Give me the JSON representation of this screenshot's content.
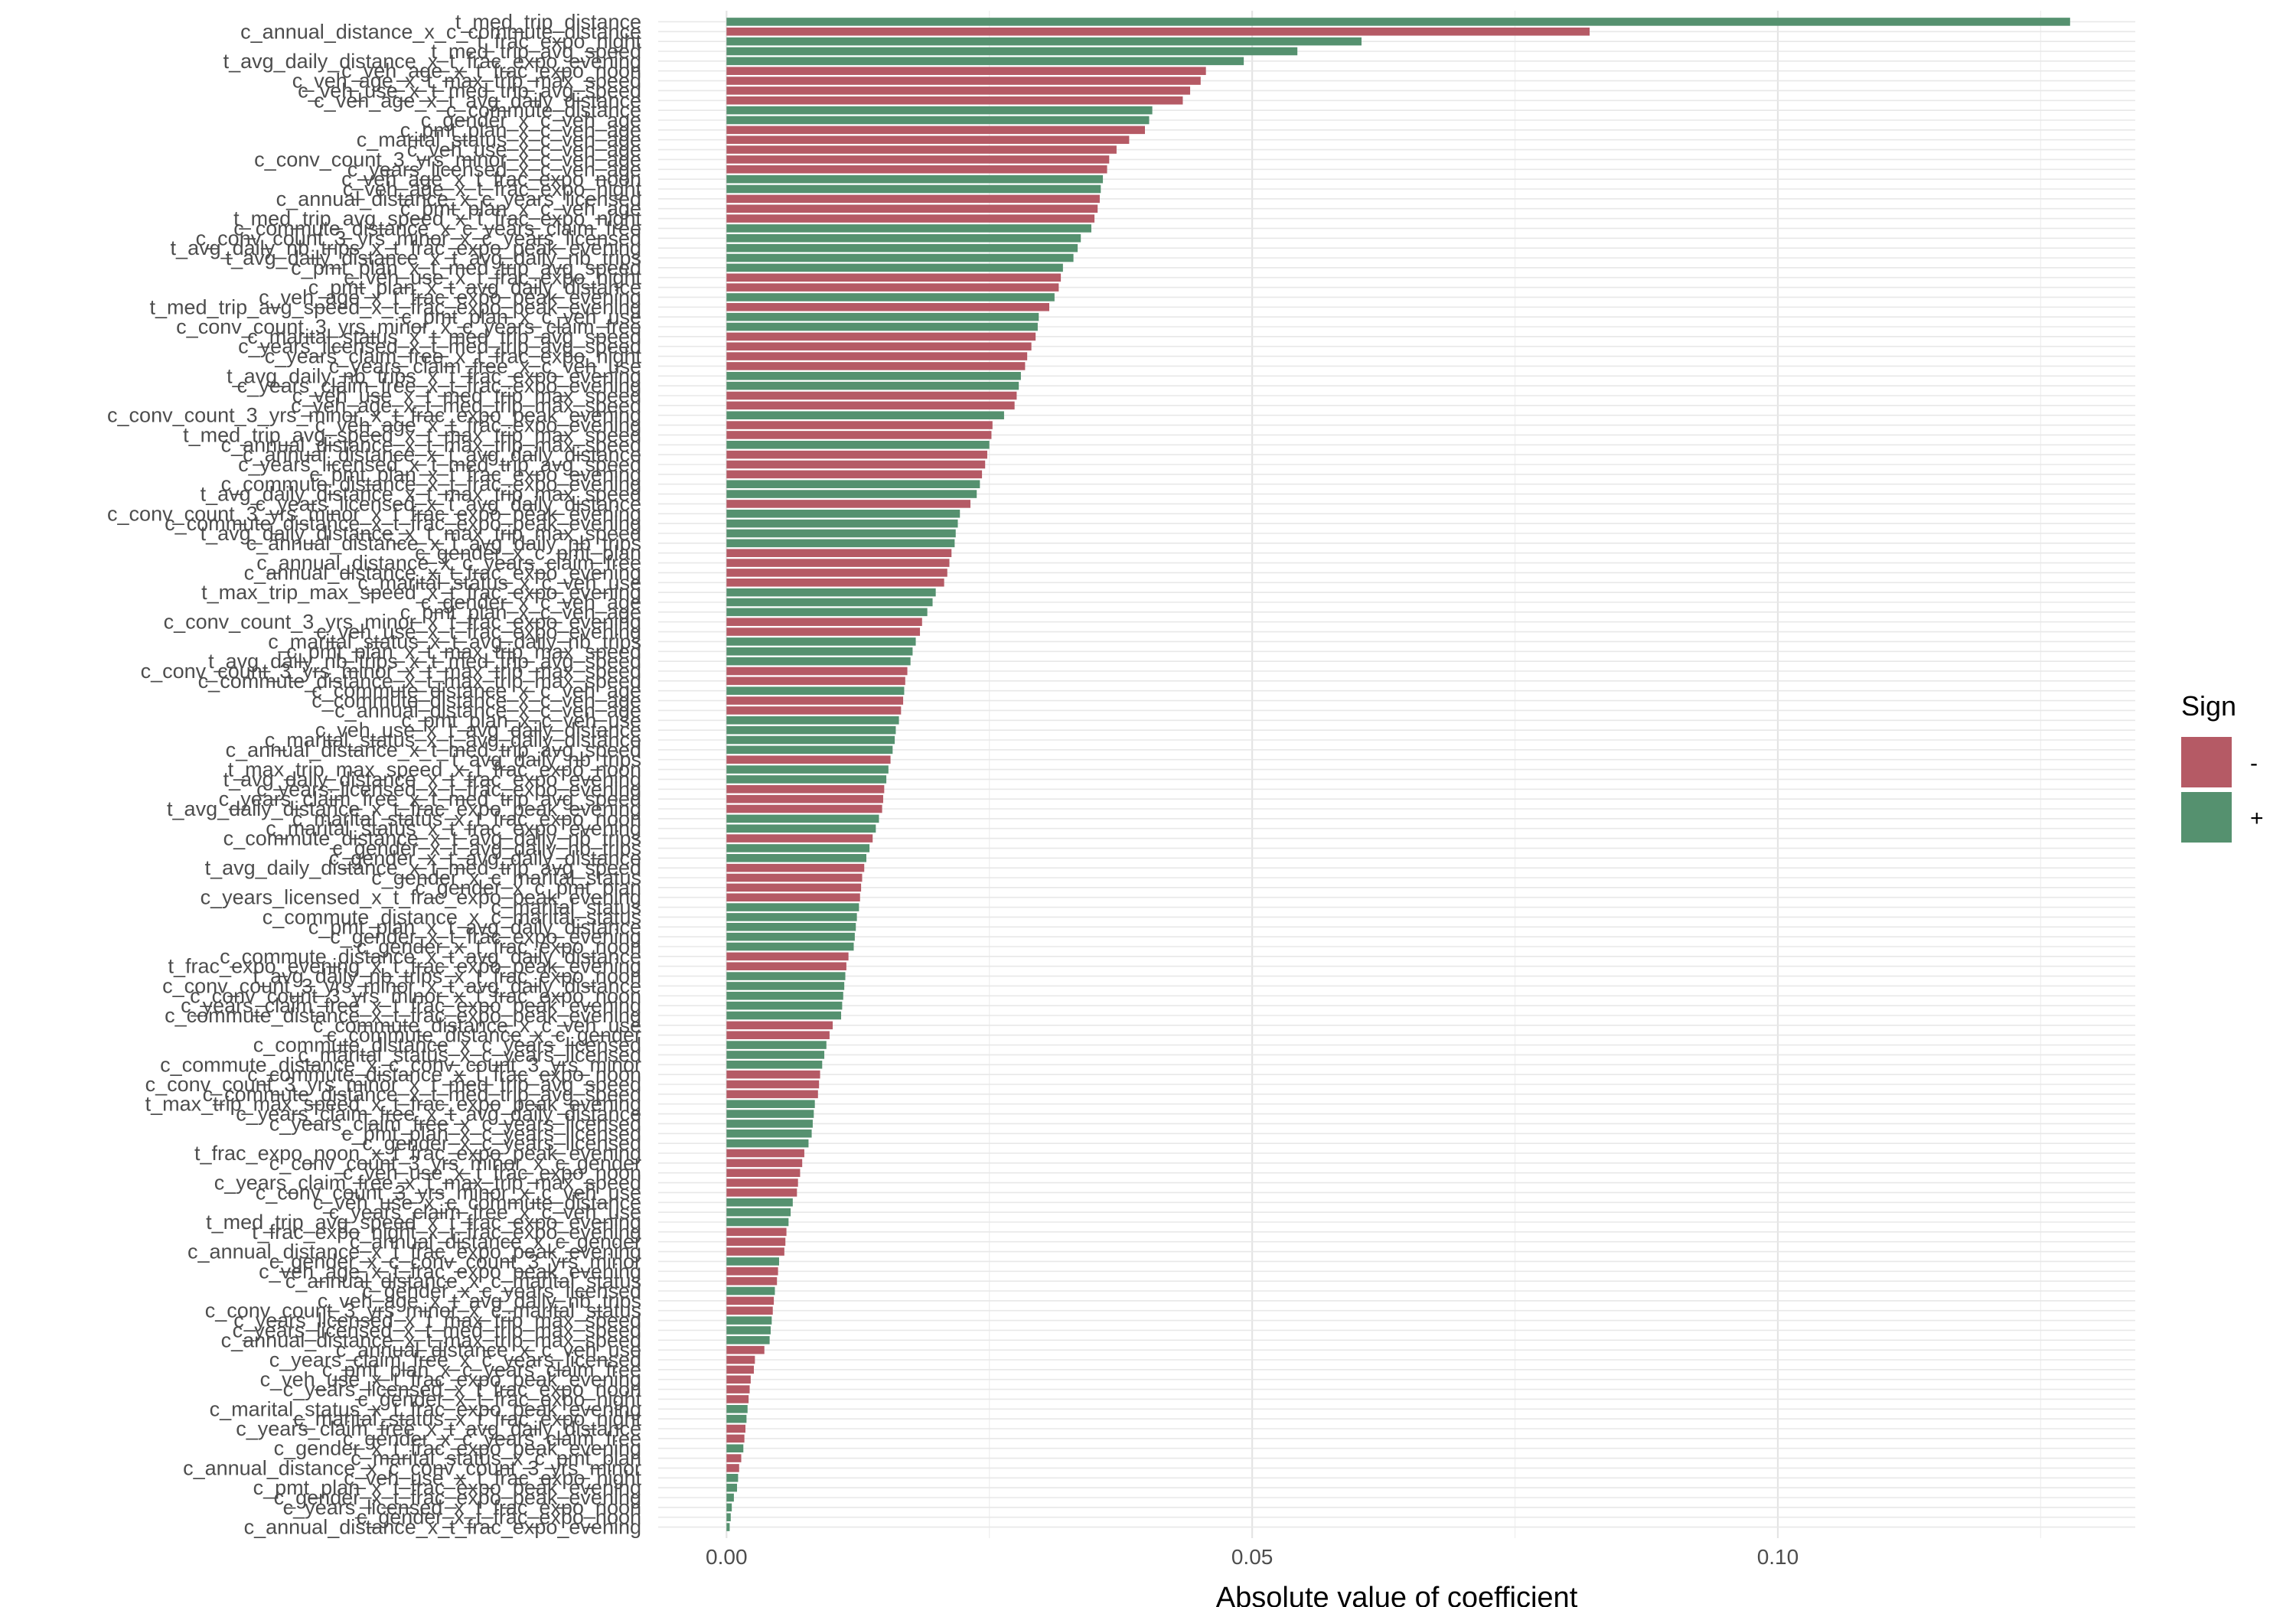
{
  "chart_data": {
    "type": "bar",
    "orientation": "horizontal",
    "xlabel": "Absolute value of coefficient",
    "x_ticks": [
      "0.00",
      "0.05",
      "0.10"
    ],
    "x_tick_values": [
      0.0,
      0.05,
      0.1
    ],
    "xlim": [
      -0.0065,
      0.134
    ],
    "grid": true,
    "legend": {
      "title": "Sign",
      "position": "right",
      "entries": [
        {
          "label": "-",
          "sign": "-"
        },
        {
          "label": "+",
          "sign": "+"
        }
      ]
    },
    "colors": {
      "-": "#b55a65",
      "+": "#55916f"
    },
    "bars": [
      {
        "label": "t_med_trip_distance",
        "value": 0.1278,
        "sign": "+"
      },
      {
        "label": "c_annual_distance_x_c_commute_distance",
        "value": 0.0821,
        "sign": "-"
      },
      {
        "label": "t_frac_expo_night",
        "value": 0.0604,
        "sign": "+"
      },
      {
        "label": "t_med_trip_avg_speed",
        "value": 0.0543,
        "sign": "+"
      },
      {
        "label": "t_avg_daily_distance_x_t_frac_expo_evening",
        "value": 0.0492,
        "sign": "+"
      },
      {
        "label": "c_veh_age_x_t_frac_expo_noon",
        "value": 0.0456,
        "sign": "-"
      },
      {
        "label": "c_veh_age_x_t_max_trip_max_speed",
        "value": 0.0451,
        "sign": "-"
      },
      {
        "label": "c_veh_use_x_t_med_trip_avg_speed",
        "value": 0.0441,
        "sign": "-"
      },
      {
        "label": "c_veh_age_x_t_avg_daily_distance",
        "value": 0.0434,
        "sign": "-"
      },
      {
        "label": "c_commute_distance",
        "value": 0.0405,
        "sign": "+"
      },
      {
        "label": "c_gender_x_c_veh_age",
        "value": 0.0402,
        "sign": "+"
      },
      {
        "label": "c_pmt_plan_x_c_veh_age",
        "value": 0.0398,
        "sign": "-"
      },
      {
        "label": "c_marital_status_x_c_veh_age",
        "value": 0.0383,
        "sign": "-"
      },
      {
        "label": "c_veh_use_x_c_veh_age",
        "value": 0.0371,
        "sign": "-"
      },
      {
        "label": "c_conv_count_3_yrs_minor_x_c_veh_age",
        "value": 0.0364,
        "sign": "-"
      },
      {
        "label": "c_years_licensed_x_c_veh_age",
        "value": 0.0362,
        "sign": "-"
      },
      {
        "label": "c_veh_age_x_t_frac_expo_noon",
        "value": 0.0358,
        "sign": "+"
      },
      {
        "label": "c_veh_age_x_t_frac_expo_night",
        "value": 0.0356,
        "sign": "+"
      },
      {
        "label": "c_annual_distance_x_c_years_licensed",
        "value": 0.0355,
        "sign": "-"
      },
      {
        "label": "c_pmt_plan_x_c_veh_age",
        "value": 0.0353,
        "sign": "-"
      },
      {
        "label": "t_med_trip_avg_speed_x_t_frac_expo_night",
        "value": 0.035,
        "sign": "-"
      },
      {
        "label": "c_commute_distance_x_c_years_claim_free",
        "value": 0.0347,
        "sign": "+"
      },
      {
        "label": "c_conv_count_3_yrs_minor_x_c_years_licensed",
        "value": 0.0337,
        "sign": "+"
      },
      {
        "label": "t_avg_daily_nb_trips_x_t_frac_expo_peak_evening",
        "value": 0.0334,
        "sign": "+"
      },
      {
        "label": "t_avg_daily_distance_x_t_avg_daily_nb_trips",
        "value": 0.033,
        "sign": "+"
      },
      {
        "label": "c_pmt_plan_x_t_med_trip_avg_speed",
        "value": 0.032,
        "sign": "+"
      },
      {
        "label": "c_veh_use_x_t_frac_expo_night",
        "value": 0.0318,
        "sign": "-"
      },
      {
        "label": "c_pmt_plan_x_t_avg_daily_distance",
        "value": 0.0316,
        "sign": "-"
      },
      {
        "label": "c_veh_age_x_t_frac_expo_peak_evening",
        "value": 0.0312,
        "sign": "+"
      },
      {
        "label": "t_med_trip_avg_speed_x_t_frac_expo_peak_evening",
        "value": 0.0307,
        "sign": "-"
      },
      {
        "label": "c_pmt_plan_x_c_veh_use",
        "value": 0.0297,
        "sign": "+"
      },
      {
        "label": "c_conv_count_3_yrs_minor_x_c_years_claim_free",
        "value": 0.0296,
        "sign": "+"
      },
      {
        "label": "c_marital_status_x_t_med_trip_avg_speed",
        "value": 0.0294,
        "sign": "-"
      },
      {
        "label": "c_years_licensed_x_t_med_trip_avg_speed",
        "value": 0.029,
        "sign": "-"
      },
      {
        "label": "c_years_claim_free_x_t_frac_expo_night",
        "value": 0.0286,
        "sign": "-"
      },
      {
        "label": "c_years_claim_free_x_c_veh_use",
        "value": 0.0284,
        "sign": "-"
      },
      {
        "label": "t_avg_daily_nb_trips_x_t_frac_expo_evening",
        "value": 0.028,
        "sign": "+"
      },
      {
        "label": "c_years_claim_free_x_t_frac_expo_evening",
        "value": 0.0278,
        "sign": "+"
      },
      {
        "label": "c_veh_use_x_t_med_trip_max_speed",
        "value": 0.0276,
        "sign": "-"
      },
      {
        "label": "c_veh_age_x_t_med_trip_max_speed",
        "value": 0.0274,
        "sign": "-"
      },
      {
        "label": "c_conv_count_3_yrs_minor_x_t_frac_expo_peak_evening",
        "value": 0.0264,
        "sign": "+"
      },
      {
        "label": "c_veh_age_x_t_frac_expo_evening",
        "value": 0.0253,
        "sign": "-"
      },
      {
        "label": "t_med_trip_avg_speed_x_t_max_trip_max_speed",
        "value": 0.0252,
        "sign": "-"
      },
      {
        "label": "c_annual_distance_x_t_max_trip_max_speed",
        "value": 0.025,
        "sign": "+"
      },
      {
        "label": "c_annual_distance_x_t_avg_daily_distance",
        "value": 0.0248,
        "sign": "-"
      },
      {
        "label": "c_years_licensed_x_t_med_trip_avg_speed",
        "value": 0.0246,
        "sign": "-"
      },
      {
        "label": "c_pmt_plan_x_t_frac_expo_evening",
        "value": 0.0243,
        "sign": "-"
      },
      {
        "label": "c_commute_distance_x_t_frac_expo_evening",
        "value": 0.0241,
        "sign": "+"
      },
      {
        "label": "t_avg_daily_distance_x_t_max_trip_max_speed",
        "value": 0.0238,
        "sign": "+"
      },
      {
        "label": "c_years_licensed_x_t_avg_daily_distance",
        "value": 0.0232,
        "sign": "-"
      },
      {
        "label": "c_conv_count_3_yrs_minor_x_t_frac_expo_peak_evening",
        "value": 0.0222,
        "sign": "+"
      },
      {
        "label": "c_commute_distance_x_t_frac_expo_peak_evening",
        "value": 0.022,
        "sign": "+"
      },
      {
        "label": "t_avg_daily_distance_x_t_max_trip_max_speed",
        "value": 0.0218,
        "sign": "+"
      },
      {
        "label": "c_annual_distance_x_t_avg_daily_nb_trips",
        "value": 0.0217,
        "sign": "+"
      },
      {
        "label": "c_gender_x_c_pmt_plan",
        "value": 0.0214,
        "sign": "-"
      },
      {
        "label": "c_annual_distance_x_c_years_claim_free",
        "value": 0.0212,
        "sign": "-"
      },
      {
        "label": "c_annual_distance_x_t_frac_expo_evening",
        "value": 0.021,
        "sign": "-"
      },
      {
        "label": "c_marital_status_x_c_veh_use",
        "value": 0.0207,
        "sign": "-"
      },
      {
        "label": "t_max_trip_max_speed_x_t_frac_expo_evening",
        "value": 0.0199,
        "sign": "+"
      },
      {
        "label": "c_gender_x_c_veh_age",
        "value": 0.0196,
        "sign": "+"
      },
      {
        "label": "c_pmt_plan_x_c_veh_age",
        "value": 0.0191,
        "sign": "+"
      },
      {
        "label": "c_conv_count_3_yrs_minor_x_t_frac_expo_evening",
        "value": 0.0186,
        "sign": "-"
      },
      {
        "label": "c_veh_use_x_t_frac_expo_evening",
        "value": 0.0184,
        "sign": "-"
      },
      {
        "label": "c_marital_status_x_t_avg_daily_nb_trips",
        "value": 0.018,
        "sign": "+"
      },
      {
        "label": "c_pmt_plan_x_t_max_trip_max_speed",
        "value": 0.0177,
        "sign": "+"
      },
      {
        "label": "t_avg_daily_nb_trips_x_t_med_trip_avg_speed",
        "value": 0.0175,
        "sign": "+"
      },
      {
        "label": "c_conv_count_3_yrs_minor_x_t_max_trip_max_speed",
        "value": 0.0172,
        "sign": "-"
      },
      {
        "label": "c_commute_distance_x_t_max_trip_max_speed",
        "value": 0.017,
        "sign": "-"
      },
      {
        "label": "c_commute_distance_x_c_veh_age",
        "value": 0.0169,
        "sign": "+"
      },
      {
        "label": "c_commute_distance_x_c_veh_age",
        "value": 0.0168,
        "sign": "-"
      },
      {
        "label": "c_annual_distance_x_c_veh_age",
        "value": 0.0166,
        "sign": "-"
      },
      {
        "label": "c_pmt_plan_x_c_veh_use",
        "value": 0.0164,
        "sign": "+"
      },
      {
        "label": "c_veh_use_x_t_avg_daily_distance",
        "value": 0.0161,
        "sign": "+"
      },
      {
        "label": "c_marital_status_x_t_avg_daily_distance",
        "value": 0.016,
        "sign": "+"
      },
      {
        "label": "c_annual_distance_x_t_med_trip_avg_speed",
        "value": 0.0158,
        "sign": "+"
      },
      {
        "label": "t_avg_daily_nb_trips",
        "value": 0.0156,
        "sign": "-"
      },
      {
        "label": "t_max_trip_max_speed_x_t_frac_expo_noon",
        "value": 0.0154,
        "sign": "+"
      },
      {
        "label": "t_avg_daily_distance_x_t_frac_expo_evening",
        "value": 0.0152,
        "sign": "+"
      },
      {
        "label": "c_years_licensed_x_t_frac_expo_evening",
        "value": 0.015,
        "sign": "-"
      },
      {
        "label": "c_years_claim_free_x_t_med_trip_avg_speed",
        "value": 0.0149,
        "sign": "-"
      },
      {
        "label": "t_avg_daily_distance_x_t_frac_expo_peak_evening",
        "value": 0.0148,
        "sign": "-"
      },
      {
        "label": "c_marital_status_x_t_frac_expo_noon",
        "value": 0.0145,
        "sign": "+"
      },
      {
        "label": "c_marital_status_x_t_frac_expo_evening",
        "value": 0.0142,
        "sign": "+"
      },
      {
        "label": "c_commute_distance_x_t_avg_daily_nb_trips",
        "value": 0.0139,
        "sign": "-"
      },
      {
        "label": "c_gender_x_t_avg_daily_nb_trips",
        "value": 0.0136,
        "sign": "+"
      },
      {
        "label": "c_gender_x_t_avg_daily_distance",
        "value": 0.0133,
        "sign": "+"
      },
      {
        "label": "t_avg_daily_distance_x_t_med_trip_avg_speed",
        "value": 0.0131,
        "sign": "-"
      },
      {
        "label": "c_gender_x_c_marital_status",
        "value": 0.0129,
        "sign": "-"
      },
      {
        "label": "c_gender_x_c_pmt_plan",
        "value": 0.0128,
        "sign": "-"
      },
      {
        "label": "c_years_licensed_x_t_frac_expo_peak_evening",
        "value": 0.0127,
        "sign": "-"
      },
      {
        "label": "c_marital_status",
        "value": 0.0126,
        "sign": "+"
      },
      {
        "label": "c_commute_distance_x_c_marital_status",
        "value": 0.0124,
        "sign": "+"
      },
      {
        "label": "c_pmt_plan_x_t_avg_daily_distance",
        "value": 0.0123,
        "sign": "+"
      },
      {
        "label": "c_gender_x_t_frac_expo_evening",
        "value": 0.0122,
        "sign": "+"
      },
      {
        "label": "c_gender_x_t_frac_expo_noon",
        "value": 0.0121,
        "sign": "+"
      },
      {
        "label": "c_commute_distance_x_t_avg_daily_distance",
        "value": 0.0116,
        "sign": "-"
      },
      {
        "label": "t_frac_expo_evening_x_t_frac_expo_peak_evening",
        "value": 0.0114,
        "sign": "-"
      },
      {
        "label": "t_avg_daily_nb_trips_x_t_frac_expo_noon",
        "value": 0.0113,
        "sign": "+"
      },
      {
        "label": "c_conv_count_3_yrs_minor_x_t_avg_daily_distance",
        "value": 0.0112,
        "sign": "+"
      },
      {
        "label": "c_conv_count_3_yrs_minor_x_t_frac_expo_noon",
        "value": 0.0111,
        "sign": "+"
      },
      {
        "label": "c_years_claim_free_x_t_frac_expo_peak_evening",
        "value": 0.011,
        "sign": "+"
      },
      {
        "label": "c_commute_distance_x_t_frac_expo_peak_evening",
        "value": 0.0109,
        "sign": "+"
      },
      {
        "label": "c_commute_distance_x_c_veh_use",
        "value": 0.0101,
        "sign": "-"
      },
      {
        "label": "c_commute_distance_x_c_gender",
        "value": 0.0098,
        "sign": "-"
      },
      {
        "label": "c_commute_distance_x_c_years_licensed",
        "value": 0.0095,
        "sign": "+"
      },
      {
        "label": "c_marital_status_x_c_years_licensed",
        "value": 0.0093,
        "sign": "+"
      },
      {
        "label": "c_commute_distance_x_c_conv_count_3_yrs_minor",
        "value": 0.0091,
        "sign": "+"
      },
      {
        "label": "c_commute_distance_x_t_frac_expo_noon",
        "value": 0.0089,
        "sign": "-"
      },
      {
        "label": "c_conv_count_3_yrs_minor_x_t_med_trip_avg_speed",
        "value": 0.0088,
        "sign": "-"
      },
      {
        "label": "c_commute_distance_x_t_med_trip_avg_speed",
        "value": 0.0087,
        "sign": "-"
      },
      {
        "label": "t_max_trip_max_speed_x_t_frac_expo_peak_evening",
        "value": 0.0084,
        "sign": "+"
      },
      {
        "label": "c_years_claim_free_x_t_avg_daily_distance",
        "value": 0.0083,
        "sign": "+"
      },
      {
        "label": "c_years_claim_free_x_c_years_licensed",
        "value": 0.0082,
        "sign": "+"
      },
      {
        "label": "c_pmt_plan_x_c_years_licensed",
        "value": 0.0081,
        "sign": "+"
      },
      {
        "label": "c_gender_x_c_years_licensed",
        "value": 0.0078,
        "sign": "+"
      },
      {
        "label": "t_frac_expo_noon_x_t_frac_expo_peak_evening",
        "value": 0.0074,
        "sign": "-"
      },
      {
        "label": "c_conv_count_3_yrs_minor_x_c_gender",
        "value": 0.0072,
        "sign": "-"
      },
      {
        "label": "c_veh_use_x_t_frac_expo_noon",
        "value": 0.007,
        "sign": "-"
      },
      {
        "label": "c_years_claim_free_x_t_max_trip_max_speed",
        "value": 0.0068,
        "sign": "-"
      },
      {
        "label": "c_conv_count_3_yrs_minor_x_c_veh_use",
        "value": 0.0067,
        "sign": "-"
      },
      {
        "label": "c_veh_use_x_c_commute_distance",
        "value": 0.0063,
        "sign": "+"
      },
      {
        "label": "c_years_claim_free_x_c_veh_use",
        "value": 0.0061,
        "sign": "+"
      },
      {
        "label": "t_med_trip_avg_speed_x_t_frac_expo_evening",
        "value": 0.0059,
        "sign": "+"
      },
      {
        "label": "t_frac_expo_night_x_t_frac_expo_evening",
        "value": 0.0057,
        "sign": "-"
      },
      {
        "label": "c_annual_distance_x_c_gender",
        "value": 0.0056,
        "sign": "-"
      },
      {
        "label": "c_annual_distance_x_t_frac_expo_peak_evening",
        "value": 0.0055,
        "sign": "-"
      },
      {
        "label": "c_gender_x_c_conv_count_3_yrs_minor",
        "value": 0.005,
        "sign": "+"
      },
      {
        "label": "c_veh_age_x_t_frac_expo_peak_evening",
        "value": 0.0049,
        "sign": "-"
      },
      {
        "label": "c_annual_distance_x_c_marital_status",
        "value": 0.0048,
        "sign": "-"
      },
      {
        "label": "c_gender_x_c_years_licensed",
        "value": 0.0046,
        "sign": "+"
      },
      {
        "label": "c_veh_age_x_t_avg_daily_nb_trips",
        "value": 0.0045,
        "sign": "-"
      },
      {
        "label": "c_conv_count_3_yrs_minor_x_c_marital_status",
        "value": 0.0044,
        "sign": "-"
      },
      {
        "label": "c_years_licensed_x_t_max_trip_max_speed",
        "value": 0.0043,
        "sign": "+"
      },
      {
        "label": "c_years_licensed_x_t_med_trip_max_speed",
        "value": 0.0042,
        "sign": "+"
      },
      {
        "label": "c_annual_distance_x_t_max_trip_max_speed",
        "value": 0.0041,
        "sign": "+"
      },
      {
        "label": "c_annual_distance_x_c_veh_use",
        "value": 0.0036,
        "sign": "-"
      },
      {
        "label": "c_years_claim_free_x_c_years_licensed",
        "value": 0.0027,
        "sign": "-"
      },
      {
        "label": "c_pmt_plan_x_c_years_claim_free",
        "value": 0.0026,
        "sign": "-"
      },
      {
        "label": "c_veh_use_x_t_frac_expo_peak_evening",
        "value": 0.0023,
        "sign": "-"
      },
      {
        "label": "c_years_licensed_x_t_frac_expo_noon",
        "value": 0.0022,
        "sign": "-"
      },
      {
        "label": "c_gender_x_t_frac_expo_night",
        "value": 0.0021,
        "sign": "-"
      },
      {
        "label": "c_marital_status_x_t_frac_expo_peak_evening",
        "value": 0.002,
        "sign": "+"
      },
      {
        "label": "c_marital_status_x_t_frac_expo_night",
        "value": 0.0019,
        "sign": "+"
      },
      {
        "label": "c_years_claim_free_x_t_avg_daily_distance",
        "value": 0.0018,
        "sign": "-"
      },
      {
        "label": "c_gender_x_c_years_claim_free",
        "value": 0.0017,
        "sign": "-"
      },
      {
        "label": "c_gender_x_t_frac_expo_peak_evening",
        "value": 0.0016,
        "sign": "+"
      },
      {
        "label": "c_marital_status_x_c_pmt_plan",
        "value": 0.0014,
        "sign": "-"
      },
      {
        "label": "c_annual_distance_x_c_conv_count_3_yrs_minor",
        "value": 0.0012,
        "sign": "-"
      },
      {
        "label": "c_veh_use_x_t_frac_expo_night",
        "value": 0.0011,
        "sign": "+"
      },
      {
        "label": "c_pmt_plan_x_t_frac_expo_peak_evening",
        "value": 0.001,
        "sign": "+"
      },
      {
        "label": "c_gender_x_t_frac_expo_peak_evening",
        "value": 0.0007,
        "sign": "+"
      },
      {
        "label": "c_years_licensed_x_t_frac_expo_noon",
        "value": 0.0005,
        "sign": "+"
      },
      {
        "label": "c_gender_x_t_frac_expo_noon",
        "value": 0.0004,
        "sign": "+"
      },
      {
        "label": "c_annual_distance_x_t_frac_expo_evening",
        "value": 0.0003,
        "sign": "+"
      }
    ]
  }
}
